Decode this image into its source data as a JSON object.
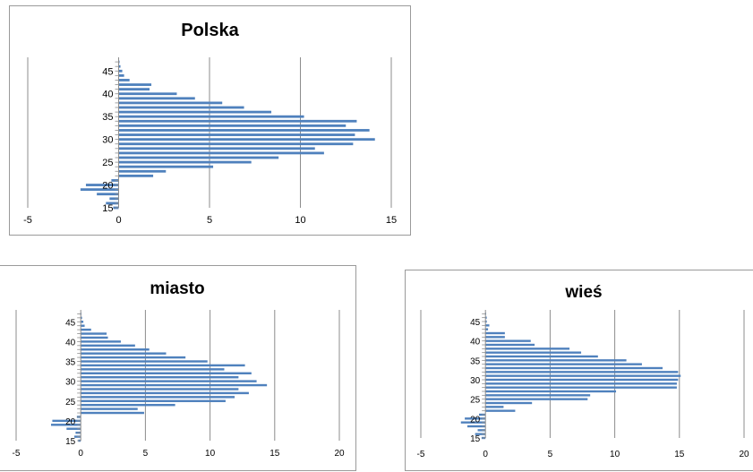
{
  "colors": {
    "bar": "#4f81bd",
    "grid": "#8c8c8c",
    "axis": "#8c8c8c"
  },
  "chart_data": [
    {
      "type": "bar",
      "orientation": "horizontal",
      "title": "Polska",
      "xlim": [
        -5,
        15
      ],
      "xticks": [
        -5,
        0,
        5,
        10,
        15
      ],
      "ylim": [
        15,
        48
      ],
      "yticks": [
        15,
        20,
        25,
        30,
        35,
        40,
        45
      ],
      "grid": "vertical",
      "categories": [
        15,
        16,
        17,
        18,
        19,
        20,
        21,
        22,
        23,
        24,
        25,
        26,
        27,
        28,
        29,
        30,
        31,
        32,
        33,
        34,
        35,
        36,
        37,
        38,
        39,
        40,
        41,
        42,
        43,
        44,
        45,
        46,
        47
      ],
      "values": [
        -0.3,
        -0.7,
        -0.5,
        -1.2,
        -2.1,
        -1.8,
        -0.4,
        1.9,
        2.6,
        5.2,
        7.3,
        8.8,
        11.3,
        10.8,
        12.9,
        14.1,
        13.0,
        13.8,
        12.5,
        13.1,
        10.2,
        8.4,
        6.9,
        5.7,
        4.2,
        3.2,
        1.7,
        1.8,
        0.6,
        0.3,
        0.2,
        0.1,
        0.05
      ]
    },
    {
      "type": "bar",
      "orientation": "horizontal",
      "title": "miasto",
      "xlim": [
        -5,
        20
      ],
      "xticks": [
        -5,
        0,
        5,
        10,
        15,
        20
      ],
      "ylim": [
        15,
        48
      ],
      "yticks": [
        15,
        20,
        25,
        30,
        35,
        40,
        45
      ],
      "grid": "vertical",
      "categories": [
        15,
        16,
        17,
        18,
        19,
        20,
        21,
        22,
        23,
        24,
        25,
        26,
        27,
        28,
        29,
        30,
        31,
        32,
        33,
        34,
        35,
        36,
        37,
        38,
        39,
        40,
        41,
        42,
        43,
        44,
        45,
        46,
        47
      ],
      "values": [
        -0.2,
        -0.5,
        -0.4,
        -1.1,
        -2.3,
        -2.2,
        -0.3,
        4.9,
        4.4,
        7.3,
        11.2,
        11.9,
        13.0,
        12.2,
        14.4,
        13.6,
        12.2,
        13.2,
        11.1,
        12.7,
        9.8,
        8.1,
        6.6,
        5.3,
        4.2,
        3.1,
        2.1,
        2.0,
        0.8,
        0.3,
        0.2,
        0.1,
        0.05
      ]
    },
    {
      "type": "bar",
      "orientation": "horizontal",
      "title": "wieś",
      "xlim": [
        -5,
        20
      ],
      "xticks": [
        -5,
        0,
        5,
        10,
        15,
        20
      ],
      "ylim": [
        15,
        48
      ],
      "yticks": [
        15,
        20,
        25,
        30,
        35,
        40,
        45
      ],
      "grid": "vertical",
      "categories": [
        15,
        16,
        17,
        18,
        19,
        20,
        21,
        22,
        23,
        24,
        25,
        26,
        27,
        28,
        29,
        30,
        31,
        32,
        33,
        34,
        35,
        36,
        37,
        38,
        39,
        40,
        41,
        42,
        43,
        44,
        45,
        46,
        47
      ],
      "values": [
        -0.3,
        -0.8,
        -0.6,
        -1.4,
        -1.9,
        -1.6,
        -0.5,
        2.3,
        1.4,
        3.6,
        7.9,
        8.1,
        10.1,
        14.8,
        14.8,
        14.9,
        15.1,
        14.9,
        13.7,
        12.1,
        10.9,
        8.7,
        7.4,
        6.5,
        3.8,
        3.5,
        1.5,
        1.5,
        0.2,
        0.3,
        0.1,
        0.1,
        0.05
      ]
    }
  ]
}
